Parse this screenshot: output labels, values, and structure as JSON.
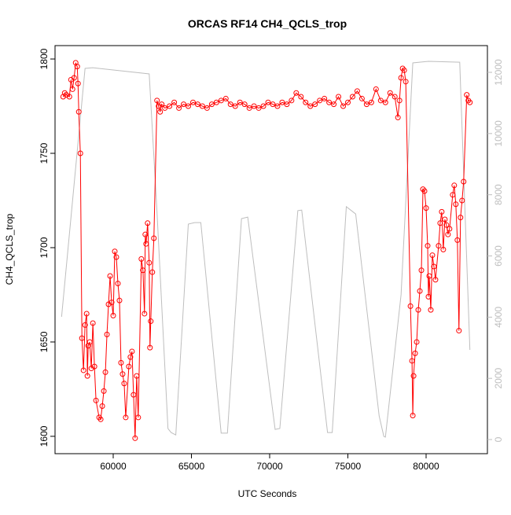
{
  "chart_data": {
    "type": "line",
    "title": "ORCAS RF14 CH4_QCLS_trop",
    "x_label": "UTC Seconds",
    "y_label": "CH4_QCLS_trop",
    "xlim": [
      56281,
      83920
    ],
    "xticks": [
      60000,
      65000,
      70000,
      75000,
      80000
    ],
    "ylim": [
      1590.8,
      1807.1
    ],
    "yticks": [
      1600,
      1650,
      1700,
      1750,
      1800
    ],
    "y2lim": [
      -462,
      12874
    ],
    "y2ticks": [
      0,
      2000,
      4000,
      6000,
      8000,
      10000,
      12000
    ],
    "series": [
      {
        "color": "#bebebe",
        "axis": "y2",
        "markers": false,
        "x": [
          56700,
          58200,
          58700,
          62300,
          62800,
          63500,
          63700,
          64000,
          64800,
          65200,
          65600,
          66900,
          67300,
          68200,
          68600,
          70350,
          70650,
          71800,
          72050,
          73700,
          74000,
          74900,
          75500,
          77000,
          77300,
          77400,
          78400,
          79150,
          80150,
          82150,
          82800
        ],
        "values": [
          4010,
          12130,
          12150,
          11950,
          7430,
          360,
          230,
          150,
          7040,
          7090,
          7090,
          210,
          210,
          7220,
          7270,
          330,
          360,
          7480,
          7500,
          230,
          230,
          7610,
          7370,
          770,
          100,
          80,
          4730,
          12310,
          12360,
          12330,
          2930
        ]
      },
      {
        "color": "#ff0000",
        "axis": "y",
        "markers": true,
        "x": [
          56800,
          56900,
          57000,
          57200,
          57300,
          57400,
          57500,
          57600,
          57700,
          57750,
          57800,
          57900,
          58000,
          58100,
          58200,
          58300,
          58350,
          58400,
          58500,
          58600,
          58700,
          58800,
          58900,
          59100,
          59200,
          59300,
          59400,
          59500,
          59600,
          59700,
          59800,
          59900,
          60000,
          60100,
          60200,
          60300,
          60400,
          60500,
          60600,
          60700,
          60800,
          61000,
          61100,
          61200,
          61300,
          61400,
          61500,
          61600,
          61800,
          61900,
          62000,
          62050,
          62100,
          62200,
          62300,
          62350,
          62400,
          62500,
          62600,
          62800,
          62900,
          63000,
          63100,
          63300,
          63600,
          63900,
          64200,
          64500,
          64800,
          65100,
          65400,
          65700,
          66000,
          66300,
          66600,
          66900,
          67200,
          67500,
          67800,
          68100,
          68400,
          68700,
          69000,
          69300,
          69600,
          69900,
          70200,
          70500,
          70800,
          71100,
          71400,
          71700,
          72000,
          72300,
          72600,
          72900,
          73200,
          73500,
          73800,
          74100,
          74400,
          74700,
          75000,
          75300,
          75600,
          75900,
          76200,
          76500,
          76800,
          77100,
          77400,
          77700,
          78000,
          78200,
          78300,
          78400,
          78500,
          78600,
          78700,
          79000,
          79100,
          79150,
          79200,
          79300,
          79400,
          79500,
          79600,
          79700,
          79800,
          79900,
          80000,
          80100,
          80150,
          80200,
          80300,
          80400,
          80500,
          80600,
          80800,
          80900,
          81000,
          81100,
          81200,
          81300,
          81400,
          81500,
          81700,
          81800,
          81900,
          82000,
          82100,
          82200,
          82300,
          82400,
          82600,
          82700,
          82800
        ],
        "values": [
          1780,
          1782,
          1781,
          1780,
          1789,
          1784,
          1790,
          1798,
          1796,
          1787,
          1772,
          1750,
          1652,
          1635,
          1659,
          1665,
          1632,
          1648,
          1650,
          1636,
          1660,
          1637,
          1619,
          1610,
          1609,
          1616,
          1624,
          1634,
          1654,
          1670,
          1685,
          1671,
          1664,
          1698,
          1695,
          1681,
          1672,
          1639,
          1633,
          1628,
          1610,
          1637,
          1642,
          1645,
          1622,
          1599,
          1632,
          1610,
          1694,
          1688,
          1665,
          1707,
          1702,
          1713,
          1692,
          1647,
          1661,
          1687,
          1705,
          1778,
          1775,
          1772,
          1776,
          1774,
          1775,
          1777,
          1774,
          1776,
          1775,
          1777,
          1776,
          1775,
          1774,
          1776,
          1777,
          1778,
          1779,
          1776,
          1775,
          1777,
          1776,
          1774,
          1775,
          1774,
          1775,
          1777,
          1776,
          1775,
          1777,
          1776,
          1778,
          1782,
          1780,
          1777,
          1775,
          1776,
          1778,
          1779,
          1777,
          1776,
          1780,
          1775,
          1777,
          1780,
          1783,
          1779,
          1776,
          1777,
          1784,
          1778,
          1777,
          1782,
          1780,
          1769,
          1778,
          1790,
          1795,
          1794,
          1788,
          1669,
          1640,
          1611,
          1632,
          1644,
          1650,
          1667,
          1677,
          1688,
          1731,
          1730,
          1721,
          1701,
          1674,
          1685,
          1667,
          1696,
          1690,
          1683,
          1701,
          1713,
          1719,
          1699,
          1715,
          1712,
          1707,
          1710,
          1728,
          1733,
          1723,
          1704,
          1656,
          1716,
          1725,
          1735,
          1781,
          1778,
          1777
        ]
      }
    ]
  }
}
